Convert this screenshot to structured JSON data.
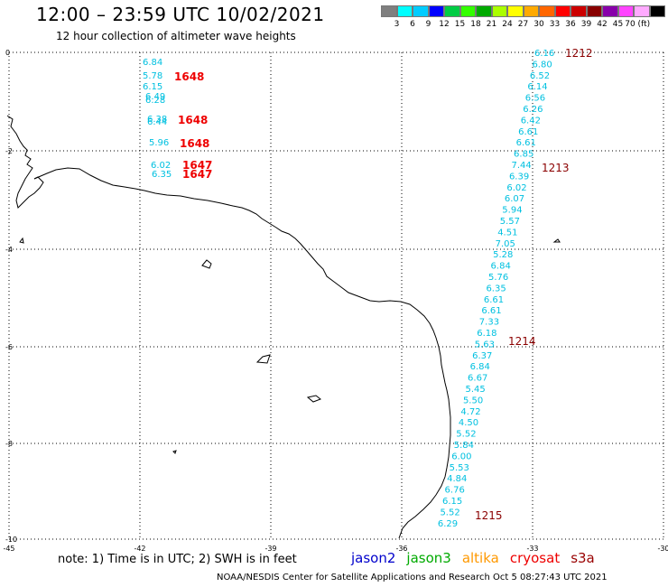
{
  "title": "12:00 – 23:59 UTC 10/02/2021",
  "subtitle": "12 hour collection of altimeter wave heights",
  "scale": {
    "colors": [
      "#7f7f7f",
      "#00ffff",
      "#00ccff",
      "#0000ff",
      "#00cc44",
      "#33ff00",
      "#00aa00",
      "#aaff00",
      "#ffff00",
      "#ffaa00",
      "#ff6600",
      "#ff0000",
      "#cc0000",
      "#880000",
      "#8800aa",
      "#ff44ff",
      "#ffaaff",
      "#000000"
    ],
    "labels": [
      "3",
      "6",
      "9",
      "12",
      "15",
      "18",
      "21",
      "24",
      "27",
      "30",
      "33",
      "36",
      "39",
      "42",
      "45",
      "70 (ft)"
    ]
  },
  "lat_labels": [
    "0",
    "-2",
    "-4",
    "-6",
    "-8",
    "-10"
  ],
  "lon_labels": [
    "-45",
    "-42",
    "-39",
    "-36",
    "-33",
    "-30"
  ],
  "track_left": {
    "values": [
      "6.84",
      "5.78",
      "6.15",
      "6.49",
      "6.28",
      "6.38",
      "6.44",
      "5.96",
      "6.02",
      "6.35"
    ],
    "times": [
      "1648",
      "1648",
      "1648",
      "1647",
      "1647"
    ]
  },
  "track_right": {
    "values": [
      "6.16",
      "6.80",
      "6.52",
      "6.14",
      "6.56",
      "6.26",
      "6.42",
      "6.61",
      "6.61",
      "6.85",
      "7.44",
      "6.39",
      "6.02",
      "6.07",
      "5.94",
      "5.57",
      "4.51",
      "7.05",
      "5.28",
      "6.84",
      "5.76",
      "6.35",
      "6.61",
      "6.61",
      "7.33",
      "6.18",
      "5.63",
      "6.37",
      "6.84",
      "6.67",
      "5.45",
      "5.50",
      "4.72",
      "4.50",
      "5.52",
      "5.84",
      "6.00",
      "5.53",
      "4.84",
      "6.76",
      "6.15",
      "5.52",
      "6.29"
    ],
    "times": [
      "1212",
      "1213",
      "1214",
      "1215"
    ]
  },
  "note": "note: 1) Time is in UTC; 2) SWH is in feet",
  "satellites": [
    {
      "name": "jason2",
      "color": "#0000cc"
    },
    {
      "name": "jason3",
      "color": "#00aa00"
    },
    {
      "name": "altika",
      "color": "#ff9900"
    },
    {
      "name": "cryosat",
      "color": "#ee0000"
    },
    {
      "name": "s3a",
      "color": "#990000"
    }
  ],
  "footer": "NOAA/NESDIS Center for Satellite Applications and Research   Oct  5 08:27:43 UTC 2021",
  "colors": {
    "value_text": "#00c0e0",
    "time_left": "#ee0000",
    "time_right": "#8b0000",
    "grid": "#000000"
  }
}
